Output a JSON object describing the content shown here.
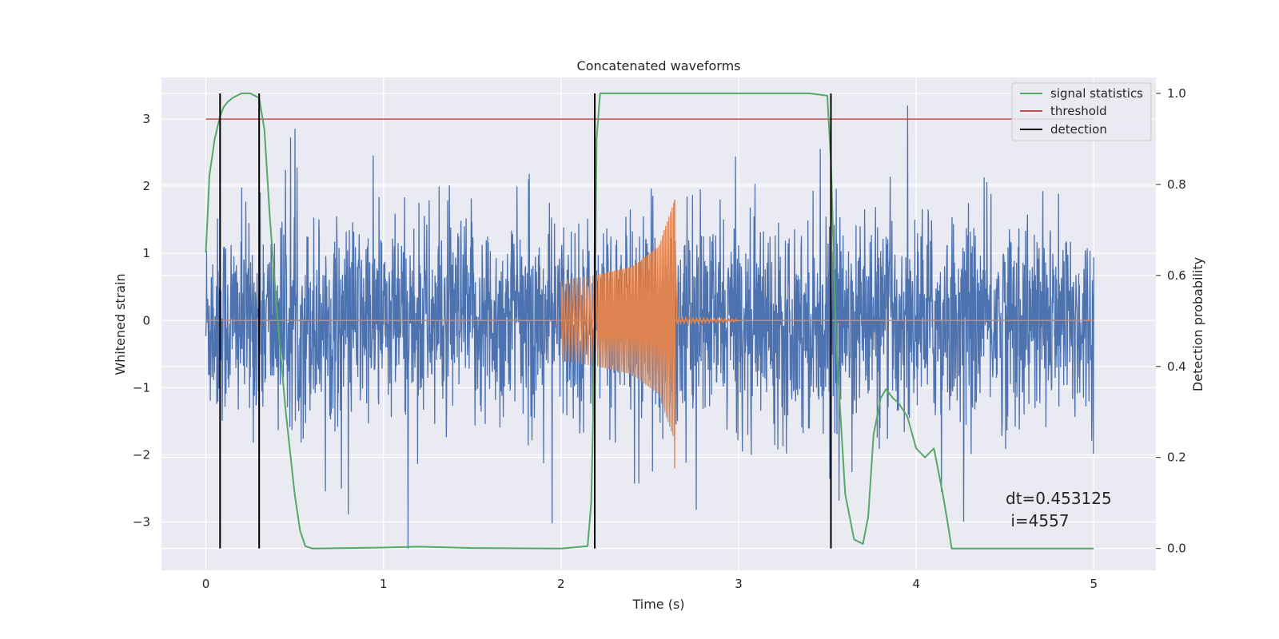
{
  "chart_data": {
    "type": "line",
    "title": "Concatenated waveforms",
    "xlabel": "Time (s)",
    "ylabel_left": "Whitened strain",
    "ylabel_right": "Detection probability",
    "xlim": [
      -0.25,
      5.35
    ],
    "ylim_left": [
      -3.72,
      3.62
    ],
    "ylim_right": [
      -0.048,
      1.035
    ],
    "x_ticks": [
      "0",
      "1",
      "2",
      "3",
      "4",
      "5"
    ],
    "y_ticks_left": [
      "3",
      "2",
      "1",
      "0",
      "−1",
      "−2",
      "−3"
    ],
    "y_ticks_right": [
      "1.0",
      "0.8",
      "0.6",
      "0.4",
      "0.2",
      "0.0"
    ],
    "grid": true,
    "legend_position": "top-right",
    "colors": {
      "noise": "#4c72b0",
      "injection": "#dd8452",
      "signal_statistics": "#55a868",
      "threshold": "#c44e52",
      "detection": "#000000",
      "background": "#eaeaf2"
    },
    "series": [
      {
        "name": "whitened noise",
        "axis": "left",
        "x_range": [
          0,
          5
        ],
        "amplitude_std": 0.75,
        "y_min": -3.4,
        "y_max": 3.2
      },
      {
        "name": "injected signal",
        "axis": "left",
        "segments": [
          {
            "x": 2.0,
            "amplitude": 0.6
          },
          {
            "x": 2.2,
            "amplitude": 0.68
          },
          {
            "x": 2.4,
            "amplitude": 0.8
          },
          {
            "x": 2.55,
            "amplitude": 1.1
          },
          {
            "x": 2.64,
            "amplitude": 1.8
          },
          {
            "x": 2.65,
            "amplitude": 0.05
          },
          {
            "x": 3.0,
            "amplitude": 0.02
          }
        ]
      },
      {
        "name": "signal statistics",
        "axis": "right",
        "x": [
          0,
          0.02,
          0.05,
          0.08,
          0.1,
          0.12,
          0.15,
          0.2,
          0.25,
          0.3,
          0.33,
          0.36,
          0.4,
          0.45,
          0.5,
          0.53,
          0.56,
          0.6,
          1.0,
          1.2,
          1.5,
          2.0,
          2.15,
          2.17,
          2.19,
          2.2,
          2.22,
          2.25,
          3.0,
          3.4,
          3.5,
          3.52,
          3.55,
          3.6,
          3.65,
          3.7,
          3.73,
          3.76,
          3.8,
          3.83,
          3.87,
          3.9,
          3.95,
          4.0,
          4.05,
          4.1,
          4.15,
          4.18,
          4.2,
          4.25,
          5.0
        ],
        "y": [
          0.65,
          0.82,
          0.9,
          0.95,
          0.97,
          0.98,
          0.99,
          1.0,
          1.0,
          0.99,
          0.92,
          0.73,
          0.52,
          0.3,
          0.12,
          0.04,
          0.005,
          0.0,
          0.002,
          0.004,
          0.001,
          0.0,
          0.005,
          0.1,
          0.45,
          0.9,
          1.0,
          1.0,
          1.0,
          1.0,
          0.995,
          0.85,
          0.45,
          0.12,
          0.02,
          0.01,
          0.07,
          0.25,
          0.33,
          0.35,
          0.33,
          0.32,
          0.29,
          0.22,
          0.2,
          0.22,
          0.12,
          0.05,
          0.0,
          0.0,
          0.0
        ]
      },
      {
        "name": "threshold",
        "axis": "left",
        "x": [
          0,
          5
        ],
        "y": [
          3,
          3
        ]
      },
      {
        "name": "detection",
        "axis": "right",
        "x_positions": [
          0.08,
          0.3,
          2.19,
          3.52
        ],
        "y_range": [
          0,
          1
        ]
      }
    ],
    "legend": [
      "signal statistics",
      "threshold",
      "detection"
    ],
    "annotations": [
      "dt=0.453125",
      " i=4557"
    ]
  }
}
